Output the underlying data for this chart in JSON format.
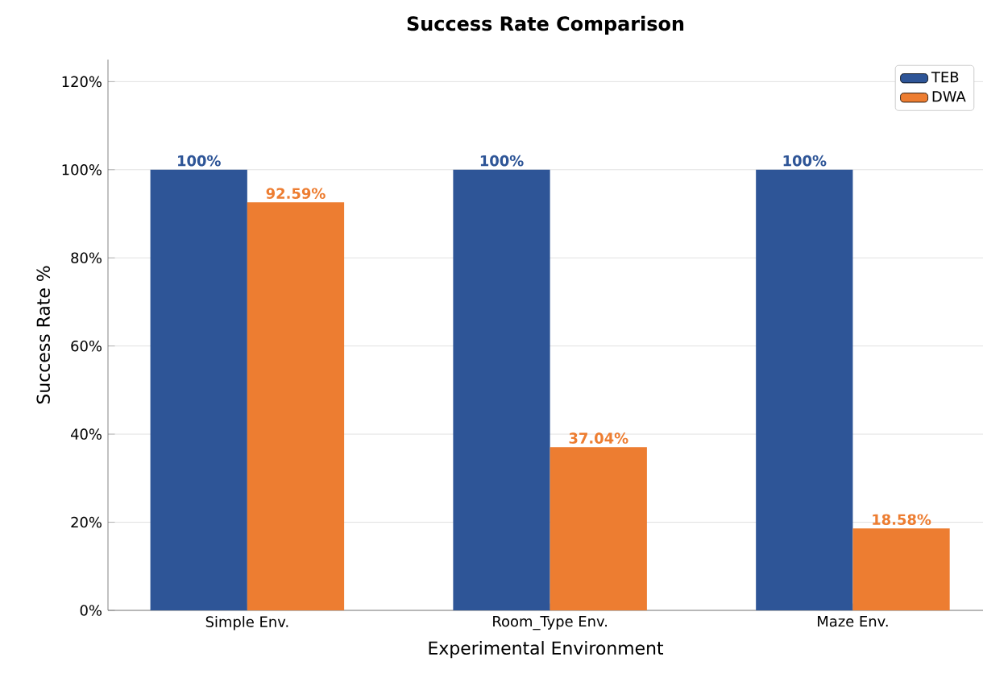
{
  "chart_data": {
    "type": "bar",
    "title": "Success Rate Comparison",
    "xlabel": "Experimental Environment",
    "ylabel": "Success Rate %",
    "categories": [
      "Simple Env.",
      "Room_Type Env.",
      "Maze Env."
    ],
    "series": [
      {
        "name": "TEB",
        "color": "#2e5597",
        "values": [
          100,
          100,
          100
        ],
        "value_labels": [
          "100%",
          "100%",
          "100%"
        ]
      },
      {
        "name": "DWA",
        "color": "#ed7d31",
        "values": [
          92.59,
          37.04,
          18.58
        ],
        "value_labels": [
          "92.59%",
          "37.04%",
          "18.58%"
        ]
      }
    ],
    "ylim": [
      0,
      125
    ],
    "yticks": [
      {
        "value": 0,
        "label": "0%"
      },
      {
        "value": 20,
        "label": "20%"
      },
      {
        "value": 40,
        "label": "40%"
      },
      {
        "value": 60,
        "label": "60%"
      },
      {
        "value": 80,
        "label": "80%"
      },
      {
        "value": 100,
        "label": "100%"
      },
      {
        "value": 120,
        "label": "120%"
      }
    ],
    "grid": "y",
    "legend": "top right"
  }
}
